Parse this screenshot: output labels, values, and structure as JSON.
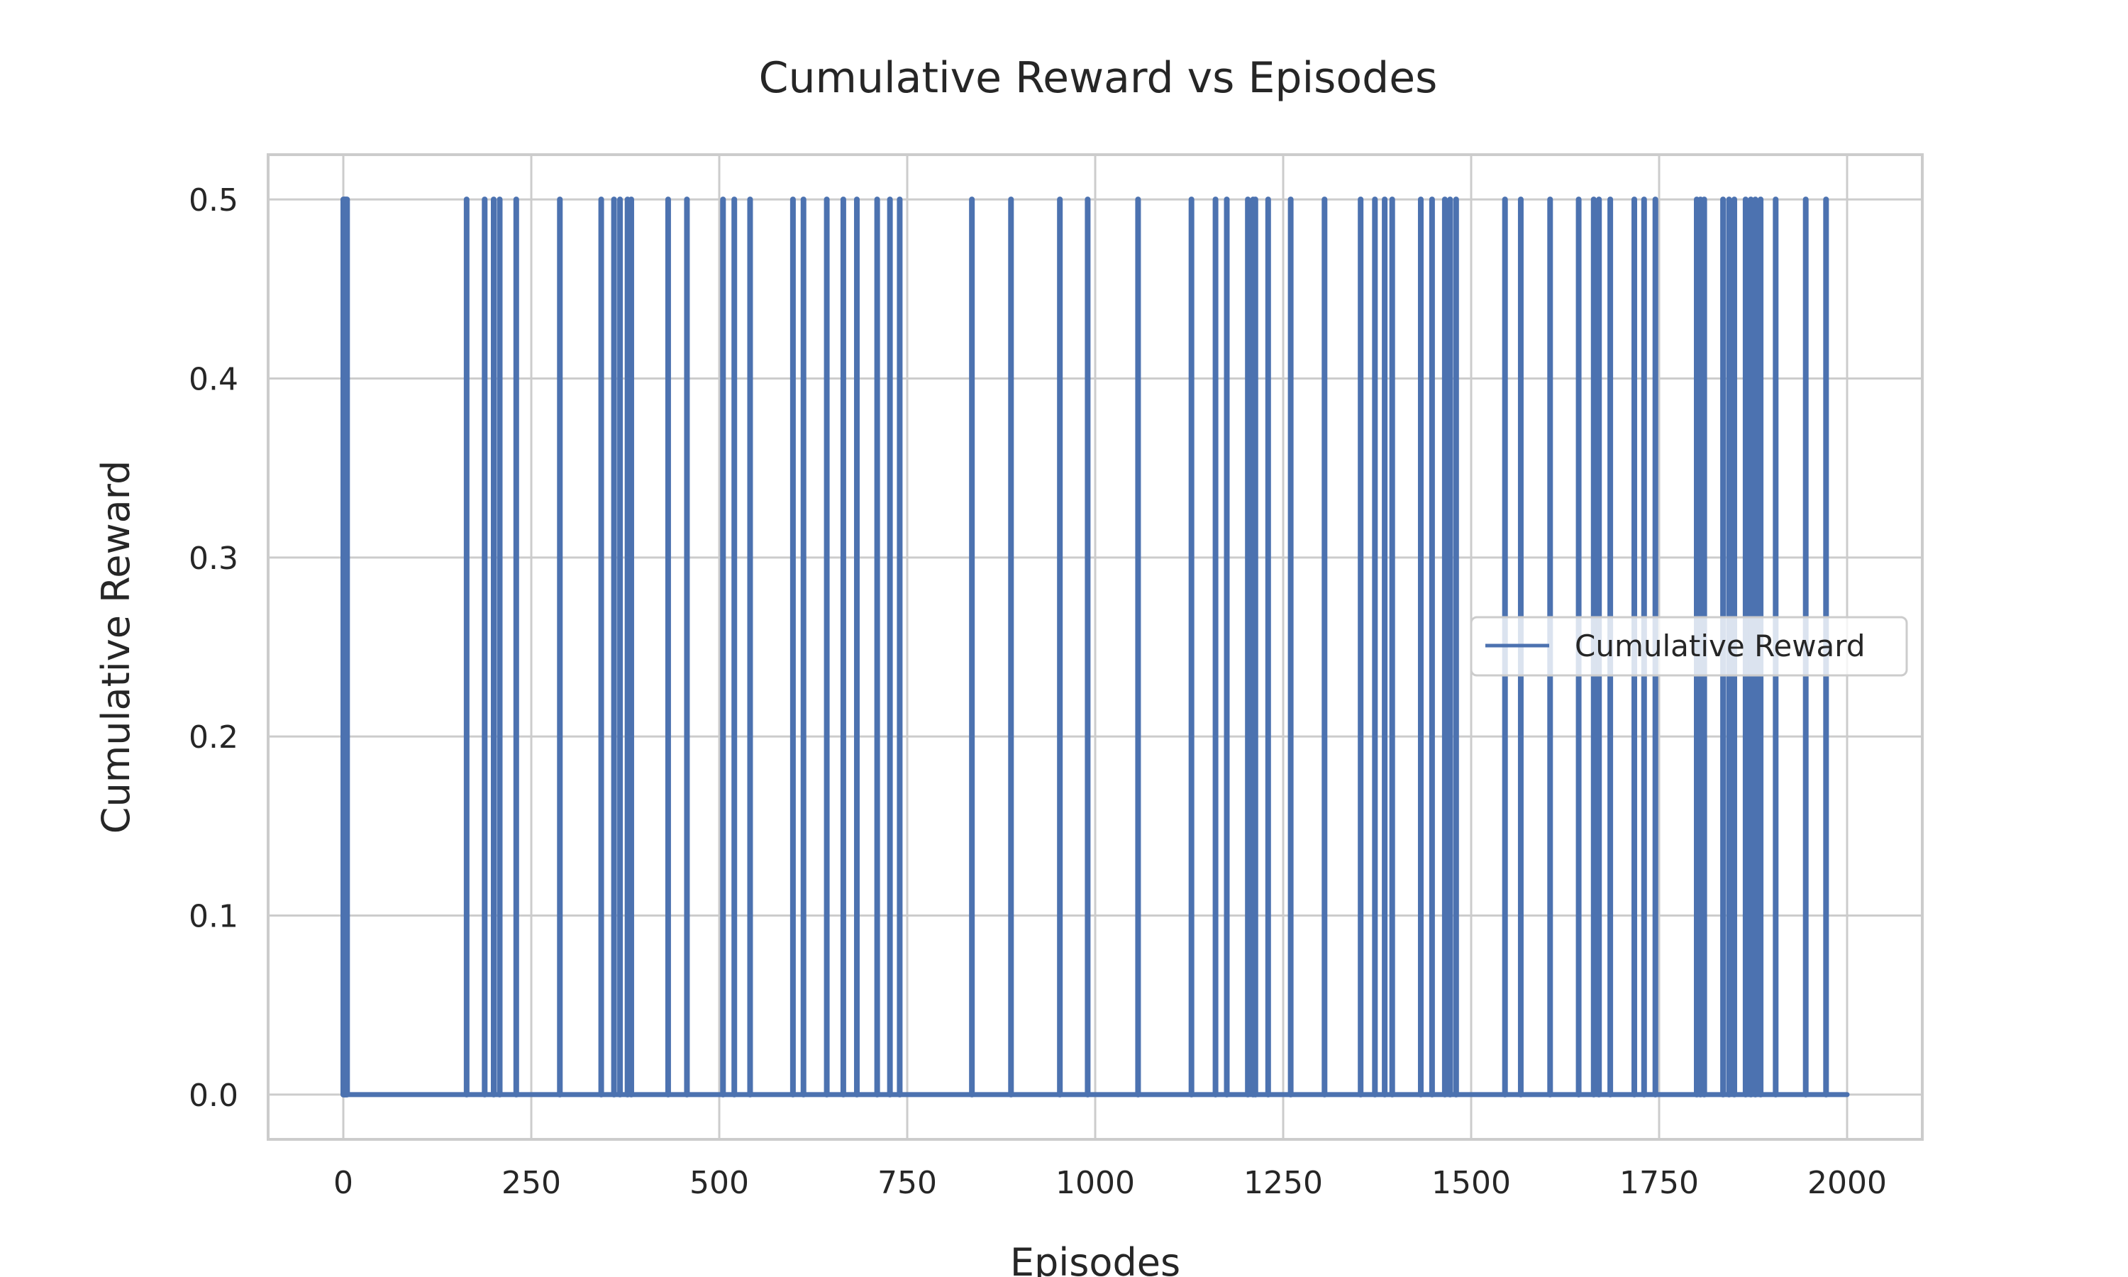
{
  "chart_data": {
    "type": "line",
    "title": "Cumulative Reward vs Episodes",
    "xlabel": "Episodes",
    "ylabel": "Cumulative Reward",
    "xlim": [
      -100,
      2100
    ],
    "ylim": [
      -0.025,
      0.525
    ],
    "xticks": [
      0,
      250,
      500,
      750,
      1000,
      1250,
      1500,
      1750,
      2000
    ],
    "xtick_labels": [
      "0",
      "250",
      "500",
      "750",
      "1000",
      "1250",
      "1500",
      "1750",
      "2000"
    ],
    "yticks": [
      0.0,
      0.1,
      0.2,
      0.3,
      0.4,
      0.5
    ],
    "ytick_labels": [
      "0.0",
      "0.1",
      "0.2",
      "0.3",
      "0.4",
      "0.5"
    ],
    "grid": true,
    "legend_position": "center-right",
    "series": [
      {
        "name": "Cumulative Reward",
        "color": "#4c72b0",
        "baseline": 0.0,
        "spike_value": 0.5,
        "x_range": [
          0,
          2000
        ],
        "reward_episodes": [
          0,
          1,
          2,
          3,
          4,
          5,
          164,
          188,
          200,
          208,
          230,
          288,
          343,
          360,
          368,
          378,
          383,
          432,
          457,
          505,
          520,
          541,
          598,
          612,
          643,
          665,
          683,
          710,
          727,
          740,
          836,
          888,
          953,
          990,
          1057,
          1128,
          1160,
          1175,
          1203,
          1210,
          1213,
          1230,
          1260,
          1305,
          1353,
          1372,
          1385,
          1395,
          1433,
          1448,
          1465,
          1472,
          1480,
          1545,
          1566,
          1605,
          1643,
          1663,
          1670,
          1685,
          1717,
          1730,
          1745,
          1800,
          1805,
          1810,
          1835,
          1843,
          1850,
          1865,
          1872,
          1878,
          1885,
          1905,
          1945,
          1972
        ]
      }
    ]
  }
}
